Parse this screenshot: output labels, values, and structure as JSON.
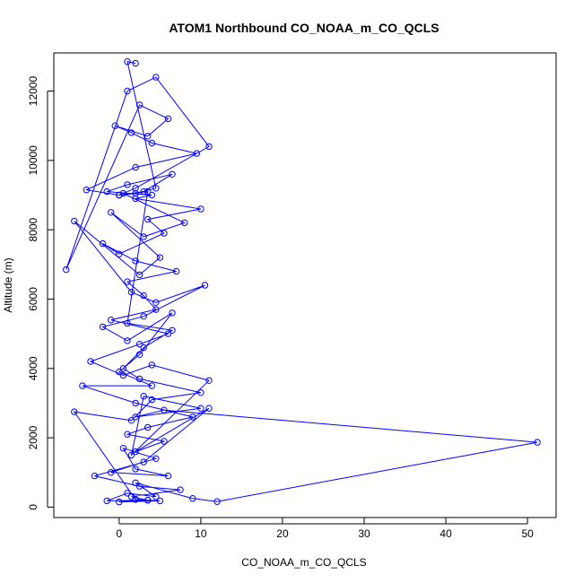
{
  "chart_data": {
    "type": "line",
    "title": "ATOM1 Northbound CO_NOAA_m_CO_QCLS",
    "xlabel": "CO_NOAA_m_CO_QCLS",
    "ylabel": "Altitude (m)",
    "xlim": [
      -8,
      53.5
    ],
    "ylim": [
      -300,
      13100
    ],
    "xticks": [
      0,
      10,
      20,
      30,
      40,
      50
    ],
    "yticks": [
      0,
      2000,
      4000,
      6000,
      8000,
      10000,
      12000
    ],
    "xtick_labels": [
      "0",
      "10",
      "20",
      "30",
      "40",
      "50"
    ],
    "ytick_labels": [
      "0",
      "2000",
      "4000",
      "6000",
      "8000",
      "10000",
      "12000"
    ],
    "series_color": "#0000ff",
    "marker": "open-circle",
    "grid": false,
    "series": [
      {
        "x": [
          3.5,
          -1.5,
          1.0,
          4.5,
          2.0,
          9.0,
          12.0,
          51.2,
          5.5,
          2.0,
          10.0,
          3.0,
          1.5,
          11.0,
          4.0,
          0.5,
          -3.5,
          2.5,
          6.0,
          -1.0,
          4.5,
          3.0,
          1.0,
          7.0,
          2.0,
          -2.0,
          0.0,
          5.5,
          3.5,
          10.0,
          2.0,
          4.0,
          -1.5,
          1.0,
          6.5,
          3.0,
          0.0,
          -4.0,
          2.0,
          9.5,
          4.0,
          1.5,
          -0.5,
          3.5,
          6.0,
          2.5,
          -6.5,
          1.0,
          4.5,
          11.0,
          2.0,
          0.5,
          8.0,
          3.0,
          -1.0,
          5.0,
          2.5,
          -5.5,
          1.5,
          4.5,
          10.5,
          3.0,
          -2.0,
          1.0,
          6.5,
          2.5,
          0.0,
          4.0,
          -4.5,
          2.0,
          9.0,
          3.5,
          1.0,
          5.5,
          2.0,
          11.0,
          3.0,
          -1.0,
          6.0,
          2.0,
          0.5,
          4.5,
          -3.0,
          2.5,
          7.5,
          1.5,
          3.5,
          0.0,
          5.0,
          2.0,
          -5.5,
          1.5,
          4.0,
          10.0,
          2.5,
          0.5,
          3.0,
          6.5,
          1.0,
          3.5,
          0.0,
          2.0,
          4.5,
          1.0,
          2.0
        ],
        "y": [
          200,
          180,
          400,
          300,
          700,
          250,
          160,
          1870,
          2800,
          2600,
          2850,
          3200,
          1500,
          3650,
          4100,
          3800,
          4200,
          4700,
          5000,
          5400,
          5700,
          6100,
          6500,
          6800,
          7100,
          7600,
          7300,
          7900,
          8300,
          8600,
          8900,
          9000,
          9100,
          9300,
          9600,
          9100,
          9000,
          9150,
          9800,
          10200,
          10500,
          10800,
          11000,
          10700,
          11200,
          11600,
          6850,
          12000,
          12400,
          10400,
          9200,
          9050,
          8200,
          7800,
          8500,
          7200,
          6700,
          8250,
          6200,
          5900,
          6400,
          5500,
          5200,
          4800,
          5600,
          4400,
          3900,
          3500,
          3500,
          3000,
          2600,
          2300,
          2100,
          1900,
          1600,
          2850,
          1300,
          1000,
          900,
          1100,
          1700,
          1400,
          900,
          600,
          500,
          300,
          200,
          150,
          180,
          220,
          2750,
          2500,
          3100,
          3300,
          3700,
          4000,
          4600,
          5100,
          5300,
          9100,
          9000,
          9050,
          9200,
          12850,
          12800
        ]
      }
    ]
  }
}
